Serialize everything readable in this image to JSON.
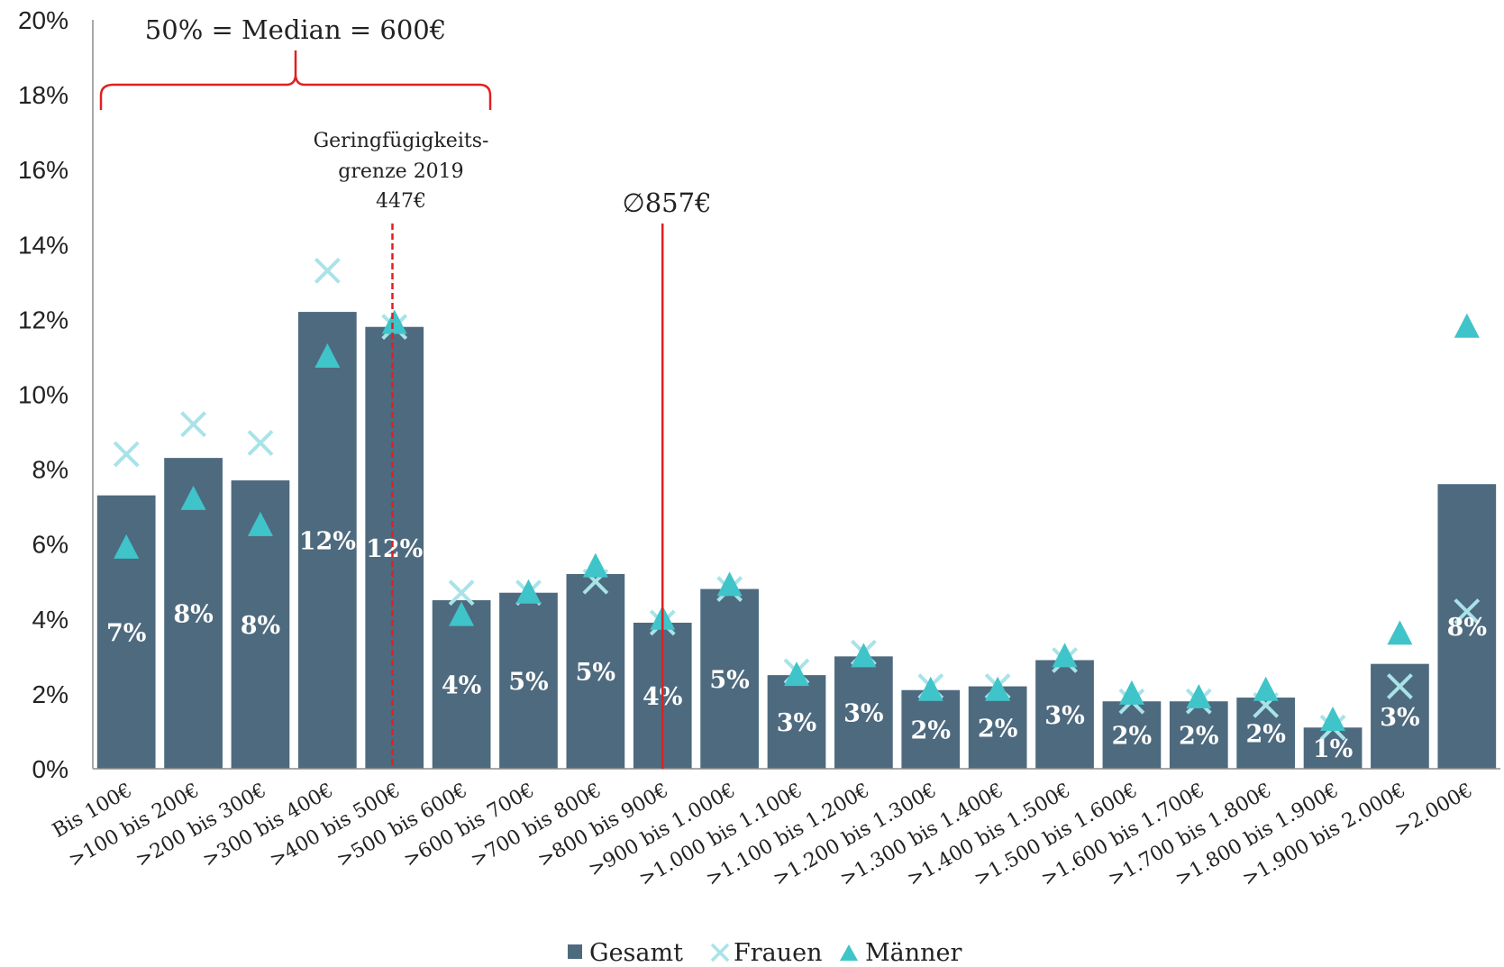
{
  "chart_data": {
    "type": "bar",
    "ylim": [
      0,
      20
    ],
    "yticks": [
      "0%",
      "2%",
      "4%",
      "6%",
      "8%",
      "10%",
      "12%",
      "14%",
      "16%",
      "18%",
      "20%"
    ],
    "categories": [
      "Bis 100€",
      ">100 bis 200€",
      ">200 bis 300€",
      ">300 bis 400€",
      ">400 bis 500€",
      ">500 bis 600€",
      ">600 bis 700€",
      ">700 bis 800€",
      ">800 bis 900€",
      ">900 bis 1.000€",
      ">1.000 bis 1.100€",
      ">1.100 bis 1.200€",
      ">1.200 bis 1.300€",
      ">1.300 bis 1.400€",
      ">1.400 bis 1.500€",
      ">1.500 bis 1.600€",
      ">1.600 bis 1.700€",
      ">1.700 bis 1.800€",
      ">1.800 bis 1.900€",
      ">1.900 bis 2.000€",
      ">2.000€"
    ],
    "series": [
      {
        "name": "Gesamt",
        "kind": "bar",
        "color": "#4e6a7f",
        "values": [
          7.3,
          8.3,
          7.7,
          12.2,
          11.8,
          4.5,
          4.7,
          5.2,
          3.9,
          4.8,
          2.5,
          3.0,
          2.1,
          2.2,
          2.9,
          1.8,
          1.8,
          1.9,
          1.1,
          2.8,
          7.6
        ],
        "labels": [
          "7%",
          "8%",
          "8%",
          "12%",
          "12%",
          "4%",
          "5%",
          "5%",
          "4%",
          "5%",
          "3%",
          "3%",
          "2%",
          "2%",
          "3%",
          "2%",
          "2%",
          "2%",
          "1%",
          "3%",
          "8%"
        ]
      },
      {
        "name": "Frauen",
        "kind": "x-marker",
        "color": "#a8e3e8",
        "values": [
          8.4,
          9.2,
          8.7,
          13.3,
          11.8,
          4.7,
          4.7,
          5.0,
          3.9,
          4.8,
          2.6,
          3.1,
          2.2,
          2.2,
          2.9,
          1.8,
          1.8,
          1.7,
          1.1,
          2.2,
          4.2
        ]
      },
      {
        "name": "Männer",
        "kind": "triangle-marker",
        "color": "#3fc4c9",
        "values": [
          5.9,
          7.2,
          6.5,
          11.0,
          11.9,
          4.1,
          4.7,
          5.4,
          4.0,
          4.9,
          2.5,
          3.0,
          2.1,
          2.1,
          3.0,
          2.0,
          1.9,
          2.1,
          1.3,
          3.6,
          11.8
        ]
      }
    ],
    "annotations": {
      "median_text": "50% = Median = 600€",
      "threshold_line1": "Geringfügigkeits-",
      "threshold_line2": "grenze 2019",
      "threshold_line3": "447€",
      "threshold_value": 447,
      "mean_text": "∅857€",
      "mean_value": 857,
      "line_color": "#e02020"
    },
    "legend": {
      "position": "bottom-center",
      "items": [
        "Gesamt",
        "Frauen",
        "Männer"
      ]
    },
    "grid": false
  }
}
